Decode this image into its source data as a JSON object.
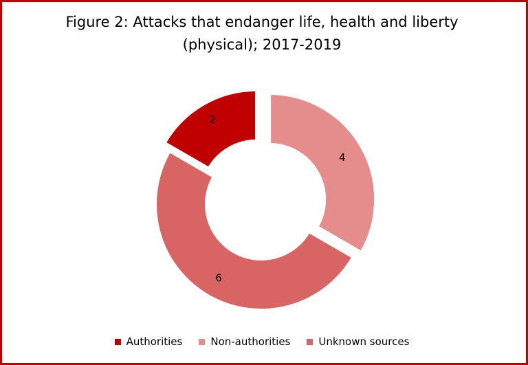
{
  "chart_data": {
    "type": "pie",
    "variant": "doughnut",
    "title_line1": "Figure 2: Attacks that endanger life, health and liberty",
    "title_line2": "(physical); 2017-2019",
    "categories": [
      "Authorities",
      "Non-authorities",
      "Unknown sources"
    ],
    "values": [
      2,
      4,
      6
    ],
    "colors": [
      "#c00000",
      "#e58c8c",
      "#d86464"
    ],
    "legend_position": "bottom",
    "exploded": true
  }
}
